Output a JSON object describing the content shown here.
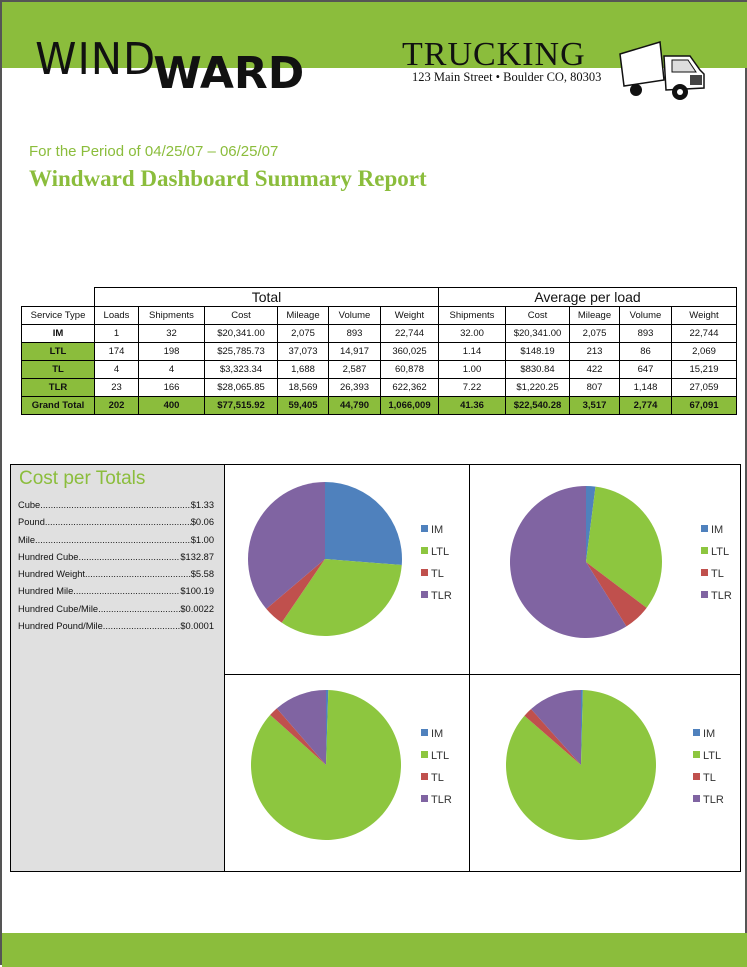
{
  "header": {
    "logo_text": "WINDWARD",
    "logo_part1": "WIND",
    "logo_part2": "WARD",
    "company": "TRUCKING",
    "address": "123 Main Street • Boulder CO, 80303"
  },
  "report": {
    "period": "For the Period of 04/25/07 – 06/25/07",
    "title": "Windward Dashboard Summary Report"
  },
  "table": {
    "group_total": "Total",
    "group_avg": "Average per load",
    "columns": [
      "Service Type",
      "Loads",
      "Shipments",
      "Cost",
      "Mileage",
      "Volume",
      "Weight",
      "Shipments",
      "Cost",
      "Mileage",
      "Volume",
      "Weight"
    ],
    "rows": [
      [
        "IM",
        "1",
        "32",
        "$20,341.00",
        "2,075",
        "893",
        "22,744",
        "32.00",
        "$20,341.00",
        "2,075",
        "893",
        "22,744"
      ],
      [
        "LTL",
        "174",
        "198",
        "$25,785.73",
        "37,073",
        "14,917",
        "360,025",
        "1.14",
        "$148.19",
        "213",
        "86",
        "2,069"
      ],
      [
        "TL",
        "4",
        "4",
        "$3,323.34",
        "1,688",
        "2,587",
        "60,878",
        "1.00",
        "$830.84",
        "422",
        "647",
        "15,219"
      ],
      [
        "TLR",
        "23",
        "166",
        "$28,065.85",
        "18,569",
        "26,393",
        "622,362",
        "7.22",
        "$1,220.25",
        "807",
        "1,148",
        "27,059"
      ],
      [
        "Grand Total",
        "202",
        "400",
        "$77,515.92",
        "59,405",
        "44,790",
        "1,066,009",
        "41.36",
        "$22,540.28",
        "3,517",
        "2,774",
        "67,091"
      ]
    ]
  },
  "cost_per_totals": {
    "title": "Cost per Totals",
    "items": [
      {
        "label": "Cube",
        "value": "$1.33"
      },
      {
        "label": "Pound",
        "value": "$0.06"
      },
      {
        "label": "Mile",
        "value": "$1.00"
      },
      {
        "label": "Hundred Cube",
        "value": "$132.87"
      },
      {
        "label": "Hundred Weight",
        "value": "$5.58"
      },
      {
        "label": "Hundred Mile",
        "value": "$100.19"
      },
      {
        "label": "Hundred Cube/Mile",
        "value": "$0.0022"
      },
      {
        "label": "Hundred Pound/Mile",
        "value": "$0.0001"
      }
    ]
  },
  "chart_data": [
    {
      "type": "pie",
      "categories": [
        "IM",
        "LTL",
        "TL",
        "TLR"
      ],
      "values": [
        20341,
        25785.73,
        3323.34,
        28065.85
      ],
      "legend": "right"
    },
    {
      "type": "pie",
      "categories": [
        "IM",
        "LTL",
        "TL",
        "TLR"
      ],
      "values": [
        893,
        14917,
        2587,
        26393
      ],
      "legend": "right"
    },
    {
      "type": "pie",
      "categories": [
        "IM",
        "LTL",
        "TL",
        "TLR"
      ],
      "values": [
        1,
        174,
        4,
        23
      ],
      "legend": "right"
    },
    {
      "type": "pie",
      "categories": [
        "IM",
        "LTL",
        "TL",
        "TLR"
      ],
      "values": [
        0.4,
        86,
        2,
        11.6
      ],
      "legend": "right"
    }
  ],
  "colors": {
    "accent": "#8bbd3c",
    "IM": "#4f81bd",
    "LTL": "#8dc63f",
    "TL": "#c0504d",
    "TLR": "#8064a2"
  }
}
